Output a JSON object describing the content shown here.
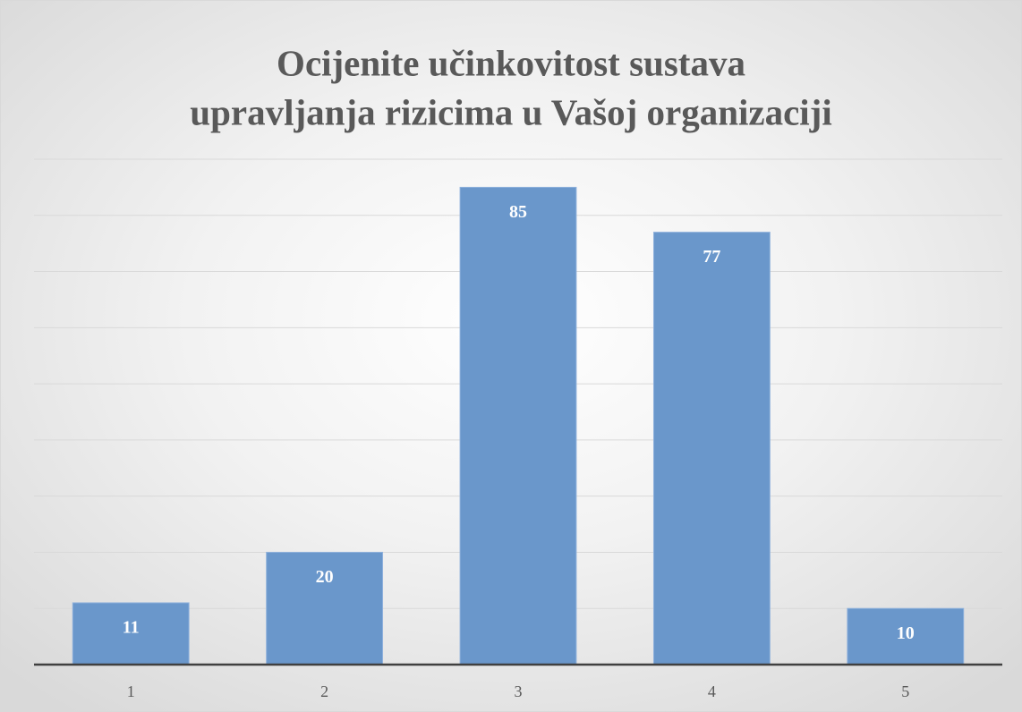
{
  "chart_data": {
    "type": "bar",
    "title": [
      "Ocijenite učinkovitost sustava",
      "upravljanja rizicima u Vašoj organizaciji"
    ],
    "categories": [
      "1",
      "2",
      "3",
      "4",
      "5"
    ],
    "values": [
      11,
      20,
      85,
      77,
      10
    ],
    "color": "#6a97cb",
    "ylim": [
      0,
      90
    ],
    "yticks": [
      0,
      10,
      20,
      30,
      40,
      50,
      60,
      70,
      80,
      90
    ],
    "grid": true
  }
}
